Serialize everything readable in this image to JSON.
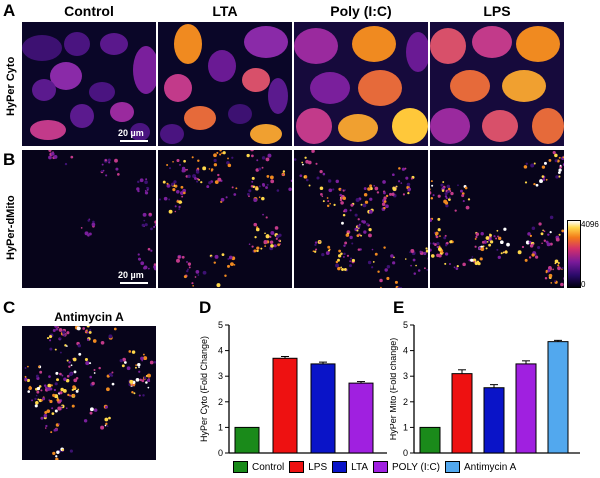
{
  "panel_letters": {
    "a": "A",
    "b": "B",
    "c": "C",
    "d": "D",
    "e": "E"
  },
  "column_titles": [
    "Control",
    "LTA",
    "Poly (I:C)",
    "LPS"
  ],
  "row_labels": {
    "cyto": "HyPer Cyto",
    "mito": "HyPer-dMito"
  },
  "scale_bar_label": "20 µm",
  "colorbar": {
    "max_label": "4096",
    "min_label": "0"
  },
  "panel_c_title": "Antimycin A",
  "colors": {
    "Control": "#1a8a1a",
    "LPS": "#ee1111",
    "LTA": "#0a14c8",
    "POLY (I:C)": "#a020e0",
    "Antimycin A": "#52a8ee"
  },
  "legend": [
    "Control",
    "LPS",
    "LTA",
    "POLY (I:C)",
    "Antimycin A"
  ],
  "chart_data": [
    {
      "type": "bar",
      "panel": "D",
      "categories": [
        "Control",
        "LPS",
        "LTA",
        "POLY (I:C)"
      ],
      "values": [
        1.0,
        3.7,
        3.48,
        2.73
      ],
      "errors": [
        0.0,
        0.07,
        0.07,
        0.06
      ],
      "title": "",
      "xlabel": "",
      "ylabel": "HyPer Cyto (Fold Change)",
      "ylim": [
        0,
        5
      ],
      "yticks": [
        "0",
        "1",
        "2",
        "3",
        "4",
        "5"
      ]
    },
    {
      "type": "bar",
      "panel": "E",
      "categories": [
        "Control",
        "LPS",
        "LTA",
        "POLY (I:C)",
        "Antimycin A"
      ],
      "values": [
        1.0,
        3.1,
        2.55,
        3.48,
        4.35
      ],
      "errors": [
        0.0,
        0.15,
        0.12,
        0.12,
        0.05
      ],
      "title": "",
      "xlabel": "",
      "ylabel": "HyPer Mito (Fold change)",
      "ylim": [
        0,
        5
      ],
      "yticks": [
        "0",
        "1",
        "2",
        "3",
        "4",
        "5"
      ]
    }
  ]
}
